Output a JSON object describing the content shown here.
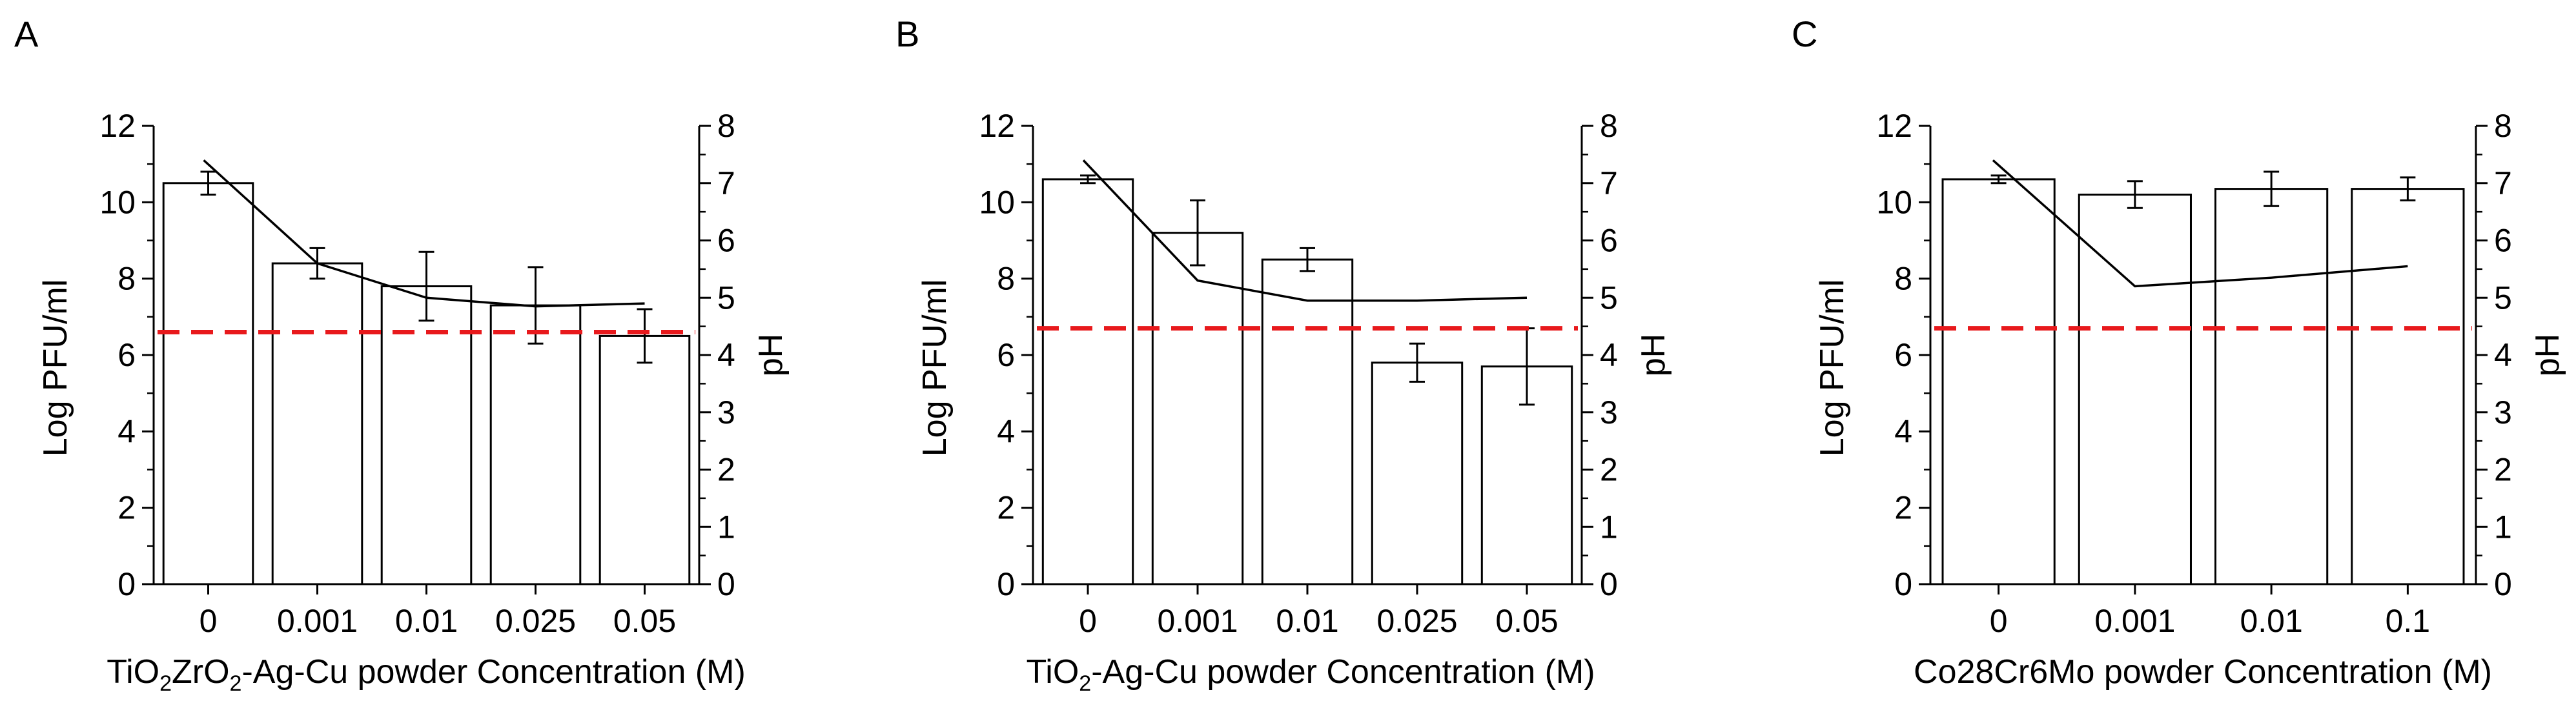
{
  "chart_data": [
    {
      "panel": "A",
      "type": "bar",
      "xlabel_parts": [
        {
          "text": "TiO",
          "sub": false
        },
        {
          "text": "2",
          "sub": true
        },
        {
          "text": "ZrO",
          "sub": false
        },
        {
          "text": "2",
          "sub": true
        },
        {
          "text": "-Ag-Cu powder Concentration (M)",
          "sub": false
        }
      ],
      "ylabel": "Log PFU/ml",
      "y2label": "pH",
      "categories": [
        "0",
        "0.001",
        "0.01",
        "0.025",
        "0.05"
      ],
      "bar_series": {
        "name": "Log PFU/ml",
        "values": [
          10.5,
          8.4,
          7.8,
          7.3,
          6.5
        ],
        "errors": [
          0.3,
          0.4,
          0.9,
          1.0,
          0.7
        ]
      },
      "line_series": {
        "name": "pH",
        "values": [
          7.4,
          5.6,
          5.0,
          4.85,
          4.9
        ]
      },
      "threshold": {
        "y": 6.6,
        "color": "#e8191c",
        "style": "dashed"
      },
      "ylim": [
        0,
        12
      ],
      "yticks": [
        0,
        2,
        4,
        6,
        8,
        10,
        12
      ],
      "y2lim": [
        0,
        8
      ],
      "y2ticks": [
        0,
        1,
        2,
        3,
        4,
        5,
        6,
        7,
        8
      ]
    },
    {
      "panel": "B",
      "type": "bar",
      "xlabel_parts": [
        {
          "text": "TiO",
          "sub": false
        },
        {
          "text": "2",
          "sub": true
        },
        {
          "text": "-Ag-Cu powder Concentration (M)",
          "sub": false
        }
      ],
      "ylabel": "Log PFU/ml",
      "y2label": "pH",
      "categories": [
        "0",
        "0.001",
        "0.01",
        "0.025",
        "0.05"
      ],
      "bar_series": {
        "name": "Log PFU/ml",
        "values": [
          10.6,
          9.2,
          8.5,
          5.8,
          5.7
        ],
        "errors": [
          0.1,
          0.85,
          0.3,
          0.5,
          1.0
        ]
      },
      "line_series": {
        "name": "pH",
        "values": [
          7.4,
          5.3,
          4.95,
          4.95,
          5.0
        ]
      },
      "threshold": {
        "y": 6.7,
        "color": "#e8191c",
        "style": "dashed"
      },
      "ylim": [
        0,
        12
      ],
      "yticks": [
        0,
        2,
        4,
        6,
        8,
        10,
        12
      ],
      "y2lim": [
        0,
        8
      ],
      "y2ticks": [
        0,
        1,
        2,
        3,
        4,
        5,
        6,
        7,
        8
      ]
    },
    {
      "panel": "C",
      "type": "bar",
      "xlabel_parts": [
        {
          "text": "Co28Cr6Mo powder Concentration (M)",
          "sub": false
        }
      ],
      "ylabel": "Log PFU/ml",
      "y2label": "pH",
      "categories": [
        "0",
        "0.001",
        "0.01",
        "0.1"
      ],
      "bar_series": {
        "name": "Log PFU/ml",
        "values": [
          10.6,
          10.2,
          10.35,
          10.35
        ],
        "errors": [
          0.1,
          0.35,
          0.45,
          0.3
        ]
      },
      "line_series": {
        "name": "pH",
        "values": [
          7.4,
          5.2,
          5.35,
          5.55
        ]
      },
      "threshold": {
        "y": 6.7,
        "color": "#e8191c",
        "style": "dashed"
      },
      "ylim": [
        0,
        12
      ],
      "yticks": [
        0,
        2,
        4,
        6,
        8,
        10,
        12
      ],
      "y2lim": [
        0,
        8
      ],
      "y2ticks": [
        0,
        1,
        2,
        3,
        4,
        5,
        6,
        7,
        8
      ]
    }
  ]
}
